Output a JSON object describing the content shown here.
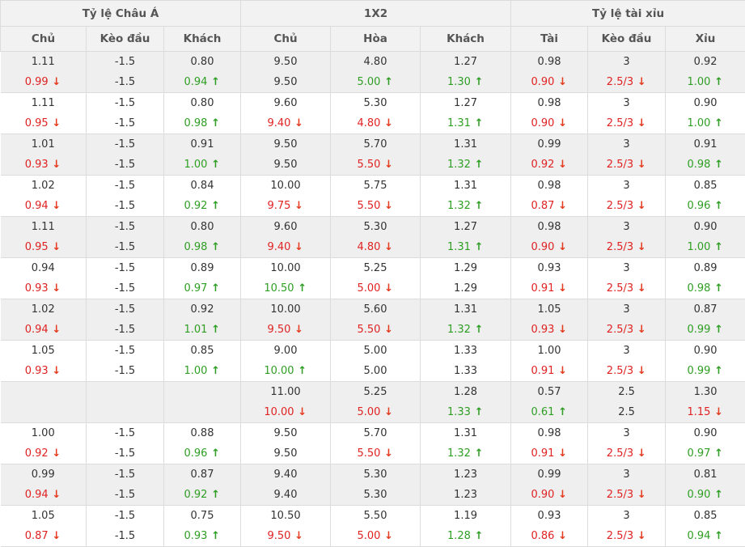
{
  "groups": [
    "Tỷ lệ Châu Á",
    "1X2",
    "Tỷ lệ tài xỉu"
  ],
  "columns": [
    "Chủ",
    "Kèo đầu",
    "Khách",
    "Chủ",
    "Hòa",
    "Khách",
    "Tài",
    "Kèo đầu",
    "Xỉu"
  ],
  "colors": {
    "up": "#2e9e23",
    "down": "#e02222",
    "shaded_row": "#efefef",
    "header_bg": "#f2f2f2"
  },
  "icons": {
    "up": "arrow-up-icon",
    "down": "arrow-down-icon"
  },
  "rows": [
    {
      "cells": [
        {
          "open": "1.11",
          "live": "0.99",
          "dir": "down"
        },
        {
          "open": "-1.5",
          "live": "-1.5",
          "dir": ""
        },
        {
          "open": "0.80",
          "live": "0.94",
          "dir": "up"
        },
        {
          "open": "9.50",
          "live": "9.50",
          "dir": ""
        },
        {
          "open": "4.80",
          "live": "5.00",
          "dir": "up"
        },
        {
          "open": "1.27",
          "live": "1.30",
          "dir": "up"
        },
        {
          "open": "0.98",
          "live": "0.90",
          "dir": "down"
        },
        {
          "open": "3",
          "live": "2.5/3",
          "dir": "down"
        },
        {
          "open": "0.92",
          "live": "1.00",
          "dir": "up"
        }
      ]
    },
    {
      "cells": [
        {
          "open": "1.11",
          "live": "0.95",
          "dir": "down"
        },
        {
          "open": "-1.5",
          "live": "-1.5",
          "dir": ""
        },
        {
          "open": "0.80",
          "live": "0.98",
          "dir": "up"
        },
        {
          "open": "9.60",
          "live": "9.40",
          "dir": "down"
        },
        {
          "open": "5.30",
          "live": "4.80",
          "dir": "down"
        },
        {
          "open": "1.27",
          "live": "1.31",
          "dir": "up"
        },
        {
          "open": "0.98",
          "live": "0.90",
          "dir": "down"
        },
        {
          "open": "3",
          "live": "2.5/3",
          "dir": "down"
        },
        {
          "open": "0.90",
          "live": "1.00",
          "dir": "up"
        }
      ]
    },
    {
      "cells": [
        {
          "open": "1.01",
          "live": "0.93",
          "dir": "down"
        },
        {
          "open": "-1.5",
          "live": "-1.5",
          "dir": ""
        },
        {
          "open": "0.91",
          "live": "1.00",
          "dir": "up"
        },
        {
          "open": "9.50",
          "live": "9.50",
          "dir": ""
        },
        {
          "open": "5.70",
          "live": "5.50",
          "dir": "down"
        },
        {
          "open": "1.31",
          "live": "1.32",
          "dir": "up"
        },
        {
          "open": "0.99",
          "live": "0.92",
          "dir": "down"
        },
        {
          "open": "3",
          "live": "2.5/3",
          "dir": "down"
        },
        {
          "open": "0.91",
          "live": "0.98",
          "dir": "up"
        }
      ]
    },
    {
      "cells": [
        {
          "open": "1.02",
          "live": "0.94",
          "dir": "down"
        },
        {
          "open": "-1.5",
          "live": "-1.5",
          "dir": ""
        },
        {
          "open": "0.84",
          "live": "0.92",
          "dir": "up"
        },
        {
          "open": "10.00",
          "live": "9.75",
          "dir": "down"
        },
        {
          "open": "5.75",
          "live": "5.50",
          "dir": "down"
        },
        {
          "open": "1.31",
          "live": "1.32",
          "dir": "up"
        },
        {
          "open": "0.98",
          "live": "0.87",
          "dir": "down"
        },
        {
          "open": "3",
          "live": "2.5/3",
          "dir": "down"
        },
        {
          "open": "0.85",
          "live": "0.96",
          "dir": "up"
        }
      ]
    },
    {
      "cells": [
        {
          "open": "1.11",
          "live": "0.95",
          "dir": "down"
        },
        {
          "open": "-1.5",
          "live": "-1.5",
          "dir": ""
        },
        {
          "open": "0.80",
          "live": "0.98",
          "dir": "up"
        },
        {
          "open": "9.60",
          "live": "9.40",
          "dir": "down"
        },
        {
          "open": "5.30",
          "live": "4.80",
          "dir": "down"
        },
        {
          "open": "1.27",
          "live": "1.31",
          "dir": "up"
        },
        {
          "open": "0.98",
          "live": "0.90",
          "dir": "down"
        },
        {
          "open": "3",
          "live": "2.5/3",
          "dir": "down"
        },
        {
          "open": "0.90",
          "live": "1.00",
          "dir": "up"
        }
      ]
    },
    {
      "cells": [
        {
          "open": "0.94",
          "live": "0.93",
          "dir": "down"
        },
        {
          "open": "-1.5",
          "live": "-1.5",
          "dir": ""
        },
        {
          "open": "0.89",
          "live": "0.97",
          "dir": "up"
        },
        {
          "open": "10.00",
          "live": "10.50",
          "dir": "up"
        },
        {
          "open": "5.25",
          "live": "5.00",
          "dir": "down"
        },
        {
          "open": "1.29",
          "live": "1.29",
          "dir": ""
        },
        {
          "open": "0.93",
          "live": "0.91",
          "dir": "down"
        },
        {
          "open": "3",
          "live": "2.5/3",
          "dir": "down"
        },
        {
          "open": "0.89",
          "live": "0.98",
          "dir": "up"
        }
      ]
    },
    {
      "cells": [
        {
          "open": "1.02",
          "live": "0.94",
          "dir": "down"
        },
        {
          "open": "-1.5",
          "live": "-1.5",
          "dir": ""
        },
        {
          "open": "0.92",
          "live": "1.01",
          "dir": "up"
        },
        {
          "open": "10.00",
          "live": "9.50",
          "dir": "down"
        },
        {
          "open": "5.60",
          "live": "5.50",
          "dir": "down"
        },
        {
          "open": "1.31",
          "live": "1.32",
          "dir": "up"
        },
        {
          "open": "1.05",
          "live": "0.93",
          "dir": "down"
        },
        {
          "open": "3",
          "live": "2.5/3",
          "dir": "down"
        },
        {
          "open": "0.87",
          "live": "0.99",
          "dir": "up"
        }
      ]
    },
    {
      "cells": [
        {
          "open": "1.05",
          "live": "0.93",
          "dir": "down"
        },
        {
          "open": "-1.5",
          "live": "-1.5",
          "dir": ""
        },
        {
          "open": "0.85",
          "live": "1.00",
          "dir": "up"
        },
        {
          "open": "9.00",
          "live": "10.00",
          "dir": "up"
        },
        {
          "open": "5.00",
          "live": "5.00",
          "dir": ""
        },
        {
          "open": "1.33",
          "live": "1.33",
          "dir": ""
        },
        {
          "open": "1.00",
          "live": "0.91",
          "dir": "down"
        },
        {
          "open": "3",
          "live": "2.5/3",
          "dir": "down"
        },
        {
          "open": "0.90",
          "live": "0.99",
          "dir": "up"
        }
      ]
    },
    {
      "cells": [
        {
          "open": "",
          "live": "",
          "dir": ""
        },
        {
          "open": "",
          "live": "",
          "dir": ""
        },
        {
          "open": "",
          "live": "",
          "dir": ""
        },
        {
          "open": "11.00",
          "live": "10.00",
          "dir": "down"
        },
        {
          "open": "5.25",
          "live": "5.00",
          "dir": "down"
        },
        {
          "open": "1.28",
          "live": "1.33",
          "dir": "up"
        },
        {
          "open": "0.57",
          "live": "0.61",
          "dir": "up"
        },
        {
          "open": "2.5",
          "live": "2.5",
          "dir": ""
        },
        {
          "open": "1.30",
          "live": "1.15",
          "dir": "down"
        }
      ]
    },
    {
      "cells": [
        {
          "open": "1.00",
          "live": "0.92",
          "dir": "down"
        },
        {
          "open": "-1.5",
          "live": "-1.5",
          "dir": ""
        },
        {
          "open": "0.88",
          "live": "0.96",
          "dir": "up"
        },
        {
          "open": "9.50",
          "live": "9.50",
          "dir": ""
        },
        {
          "open": "5.70",
          "live": "5.50",
          "dir": "down"
        },
        {
          "open": "1.31",
          "live": "1.32",
          "dir": "up"
        },
        {
          "open": "0.98",
          "live": "0.91",
          "dir": "down"
        },
        {
          "open": "3",
          "live": "2.5/3",
          "dir": "down"
        },
        {
          "open": "0.90",
          "live": "0.97",
          "dir": "up"
        }
      ]
    },
    {
      "cells": [
        {
          "open": "0.99",
          "live": "0.94",
          "dir": "down"
        },
        {
          "open": "-1.5",
          "live": "-1.5",
          "dir": ""
        },
        {
          "open": "0.87",
          "live": "0.92",
          "dir": "up"
        },
        {
          "open": "9.40",
          "live": "9.40",
          "dir": ""
        },
        {
          "open": "5.30",
          "live": "5.30",
          "dir": ""
        },
        {
          "open": "1.23",
          "live": "1.23",
          "dir": ""
        },
        {
          "open": "0.99",
          "live": "0.90",
          "dir": "down"
        },
        {
          "open": "3",
          "live": "2.5/3",
          "dir": "down"
        },
        {
          "open": "0.81",
          "live": "0.90",
          "dir": "up"
        }
      ]
    },
    {
      "cells": [
        {
          "open": "1.05",
          "live": "0.87",
          "dir": "down"
        },
        {
          "open": "-1.5",
          "live": "-1.5",
          "dir": ""
        },
        {
          "open": "0.75",
          "live": "0.93",
          "dir": "up"
        },
        {
          "open": "10.50",
          "live": "9.50",
          "dir": "down"
        },
        {
          "open": "5.50",
          "live": "5.00",
          "dir": "down"
        },
        {
          "open": "1.19",
          "live": "1.28",
          "dir": "up"
        },
        {
          "open": "0.93",
          "live": "0.86",
          "dir": "down"
        },
        {
          "open": "3",
          "live": "2.5/3",
          "dir": "down"
        },
        {
          "open": "0.85",
          "live": "0.94",
          "dir": "up"
        }
      ]
    }
  ]
}
